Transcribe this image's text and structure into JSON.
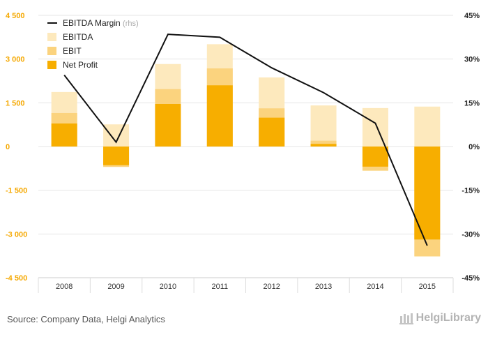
{
  "colors": {
    "ebitda": "#fde9bd",
    "ebit": "#fbd37e",
    "net_profit": "#f7ae00",
    "line": "#111111",
    "grid": "#e6e6e6",
    "left_axis_text": "#f5a800"
  },
  "chart_data": {
    "type": "bar",
    "categories": [
      "2008",
      "2009",
      "2010",
      "2011",
      "2012",
      "2013",
      "2014",
      "2015"
    ],
    "series": [
      {
        "name": "EBITDA",
        "type": "bar",
        "values": [
          1870,
          760,
          2830,
          3510,
          2370,
          1410,
          1320,
          1370
        ]
      },
      {
        "name": "EBIT",
        "type": "bar",
        "values": [
          1150,
          -700,
          1970,
          2680,
          1310,
          200,
          -830,
          -3770
        ]
      },
      {
        "name": "Net Profit",
        "type": "bar",
        "values": [
          790,
          -640,
          1460,
          2100,
          990,
          90,
          -690,
          -3190
        ]
      },
      {
        "name": "EBITDA Margin",
        "name_suffix": "(rhs)",
        "type": "line",
        "axis": "right",
        "values": [
          24.5,
          1.5,
          38.5,
          37.5,
          27,
          18.5,
          8,
          -34
        ]
      }
    ],
    "ylim": [
      -4500,
      4500
    ],
    "yticks": [
      "4 500",
      "3 000",
      "1 500",
      "0",
      "-1 500",
      "-3 000",
      "-4 500"
    ],
    "y2lim": [
      -45,
      45
    ],
    "y2ticks": [
      "45%",
      "30%",
      "15%",
      "0%",
      "-15%",
      "-30%",
      "-45%"
    ],
    "grid": true,
    "legend_position": "top-left"
  },
  "footer": {
    "source": "Source: Company Data, Helgi Analytics",
    "brand": "HelgiLibrary"
  }
}
